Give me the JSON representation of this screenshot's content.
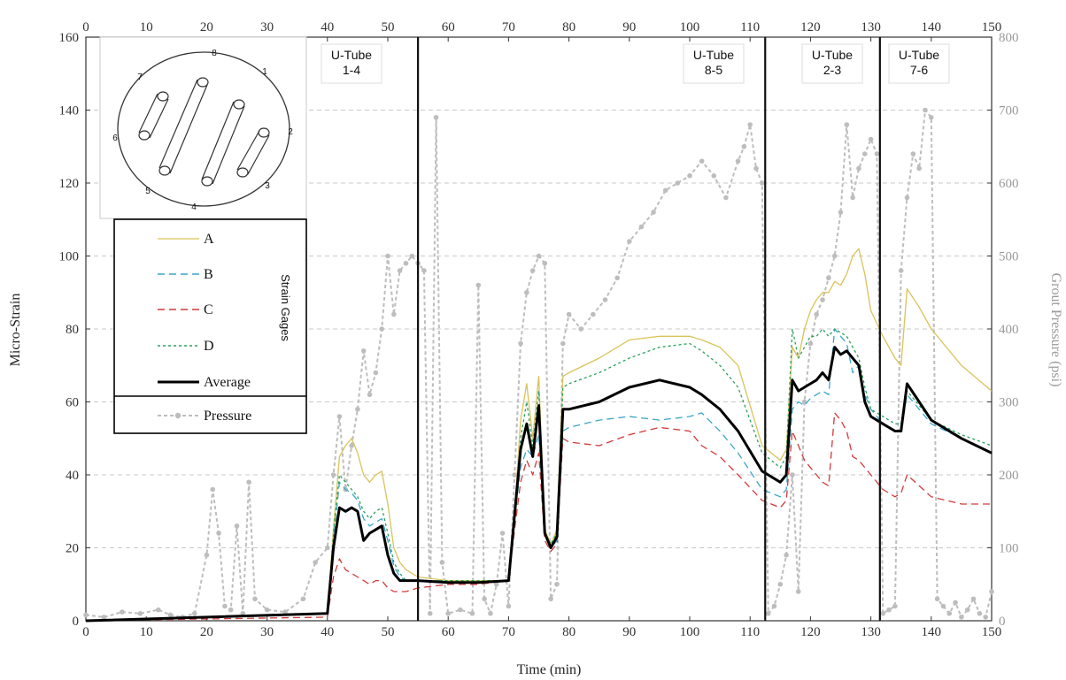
{
  "chart_data": {
    "type": "line",
    "xlabel": "Time (min)",
    "ylabel_left": "Micro-Strain",
    "ylabel_right": "Grout Pressure (psi)",
    "xlim": [
      0,
      150
    ],
    "ylim_left": [
      0,
      160
    ],
    "ylim_right": [
      0,
      800
    ],
    "x_ticks": [
      0,
      10,
      20,
      30,
      40,
      50,
      60,
      70,
      80,
      90,
      100,
      110,
      120,
      130,
      140,
      150
    ],
    "y_left_ticks": [
      0,
      20,
      40,
      60,
      80,
      100,
      120,
      140,
      160
    ],
    "y_right_ticks": [
      0,
      100,
      200,
      300,
      400,
      500,
      600,
      700,
      800
    ],
    "grid": "horizontal dashed",
    "legend_title": "Strain Gages",
    "legend_position": "top-left",
    "series": [
      {
        "name": "A",
        "color": "#d9c35a",
        "style": "solid",
        "axis": "left",
        "x": [
          0,
          40,
          41,
          42,
          43,
          44,
          45,
          46,
          47,
          48,
          49,
          50,
          51,
          52,
          53,
          55,
          60,
          65,
          70,
          71,
          72,
          73,
          74,
          75,
          76,
          77,
          78,
          79,
          80,
          85,
          90,
          95,
          100,
          102,
          105,
          108,
          112,
          115,
          116,
          117,
          118,
          119,
          120,
          121,
          122,
          123,
          124,
          125,
          126,
          127,
          128,
          129,
          130,
          132,
          134,
          135,
          136,
          138,
          140,
          145,
          150
        ],
        "y": [
          0,
          2,
          25,
          45,
          48,
          50,
          46,
          40,
          38,
          40,
          41,
          32,
          20,
          16,
          14,
          12,
          11,
          11,
          11,
          30,
          55,
          65,
          50,
          67,
          25,
          21,
          25,
          67,
          68,
          72,
          77,
          78,
          78,
          77,
          75,
          70,
          48,
          44,
          47,
          75,
          72,
          80,
          85,
          88,
          90,
          90,
          93,
          92,
          95,
          100,
          102,
          95,
          85,
          78,
          72,
          70,
          91,
          86,
          80,
          70,
          63
        ]
      },
      {
        "name": "B",
        "color": "#3aa6c8",
        "style": "dashed",
        "axis": "left",
        "x": [
          0,
          40,
          41,
          42,
          43,
          44,
          45,
          46,
          47,
          48,
          49,
          50,
          51,
          52,
          53,
          55,
          60,
          65,
          70,
          71,
          72,
          73,
          74,
          75,
          76,
          77,
          78,
          79,
          80,
          85,
          90,
          95,
          100,
          102,
          105,
          108,
          112,
          115,
          116,
          117,
          118,
          119,
          120,
          121,
          122,
          123,
          124,
          125,
          126,
          127,
          128,
          129,
          130,
          132,
          134,
          135,
          136,
          138,
          140,
          145,
          150
        ],
        "y": [
          0,
          2,
          22,
          38,
          36,
          35,
          33,
          28,
          26,
          27,
          28,
          22,
          15,
          12,
          11,
          11,
          11,
          11,
          11,
          28,
          42,
          47,
          45,
          51,
          24,
          20,
          22,
          52,
          53,
          55,
          56,
          55,
          56,
          57,
          52,
          46,
          36,
          34,
          36,
          58,
          60,
          59,
          61,
          62,
          63,
          62,
          80,
          78,
          76,
          68,
          70,
          62,
          58,
          54,
          52,
          52,
          62,
          58,
          54,
          50,
          46
        ]
      },
      {
        "name": "C",
        "color": "#d23a3a",
        "style": "dashed",
        "axis": "left",
        "x": [
          0,
          40,
          41,
          42,
          43,
          44,
          45,
          46,
          47,
          48,
          49,
          50,
          51,
          52,
          53,
          55,
          60,
          65,
          70,
          71,
          72,
          73,
          74,
          75,
          76,
          77,
          78,
          79,
          80,
          85,
          90,
          95,
          100,
          102,
          105,
          108,
          112,
          115,
          116,
          117,
          118,
          119,
          120,
          121,
          122,
          123,
          124,
          125,
          126,
          127,
          128,
          129,
          130,
          132,
          134,
          135,
          136,
          138,
          140,
          145,
          150
        ],
        "y": [
          0,
          1,
          12,
          17,
          14,
          13,
          12,
          11,
          10,
          11,
          11,
          9,
          8,
          8,
          8,
          9,
          10,
          10,
          11,
          25,
          38,
          44,
          40,
          46,
          22,
          19,
          21,
          50,
          49,
          48,
          51,
          53,
          52,
          48,
          45,
          40,
          33,
          31,
          33,
          52,
          48,
          44,
          42,
          40,
          38,
          37,
          57,
          55,
          52,
          45,
          44,
          42,
          40,
          36,
          34,
          35,
          40,
          37,
          34,
          32,
          32
        ]
      },
      {
        "name": "D",
        "color": "#2aa05a",
        "style": "dotted",
        "axis": "left",
        "x": [
          0,
          40,
          41,
          42,
          43,
          44,
          45,
          46,
          47,
          48,
          49,
          50,
          51,
          52,
          53,
          55,
          60,
          65,
          70,
          71,
          72,
          73,
          74,
          75,
          76,
          77,
          78,
          79,
          80,
          85,
          90,
          95,
          100,
          102,
          105,
          108,
          112,
          115,
          116,
          117,
          118,
          119,
          120,
          121,
          122,
          123,
          124,
          125,
          126,
          127,
          128,
          129,
          130,
          132,
          134,
          135,
          136,
          138,
          140,
          145,
          150
        ],
        "y": [
          0,
          2,
          24,
          40,
          38,
          36,
          34,
          30,
          28,
          30,
          31,
          24,
          16,
          13,
          11,
          11,
          11,
          11,
          11,
          30,
          50,
          60,
          48,
          63,
          24,
          21,
          24,
          64,
          65,
          68,
          72,
          75,
          76,
          74,
          70,
          64,
          46,
          42,
          45,
          80,
          72,
          75,
          78,
          78,
          80,
          78,
          80,
          79,
          78,
          75,
          72,
          64,
          58,
          56,
          54,
          54,
          63,
          59,
          55,
          51,
          48
        ]
      },
      {
        "name": "Average",
        "color": "#000000",
        "style": "solid-thick",
        "axis": "left",
        "x": [
          0,
          40,
          41,
          42,
          43,
          44,
          45,
          46,
          47,
          48,
          49,
          50,
          51,
          52,
          53,
          55,
          60,
          65,
          70,
          71,
          72,
          73,
          74,
          75,
          76,
          77,
          78,
          79,
          80,
          85,
          90,
          95,
          100,
          102,
          105,
          108,
          112,
          115,
          116,
          117,
          118,
          119,
          120,
          121,
          122,
          123,
          124,
          125,
          126,
          127,
          128,
          129,
          130,
          132,
          134,
          135,
          136,
          138,
          140,
          145,
          150
        ],
        "y": [
          0,
          2,
          20,
          31,
          30,
          31,
          30,
          22,
          24,
          25,
          26,
          18,
          13,
          11,
          11,
          11,
          10.5,
          10.5,
          11,
          29,
          47,
          54,
          45,
          59,
          24,
          20,
          23,
          58,
          58,
          60,
          64,
          66,
          64,
          62,
          58,
          52,
          41,
          38,
          40,
          66,
          63,
          64,
          65,
          66,
          68,
          66,
          75,
          73,
          74,
          72,
          70,
          60,
          56,
          54,
          52,
          52,
          65,
          60,
          55,
          50,
          46
        ]
      },
      {
        "name": "Pressure",
        "color": "#bdbdbd",
        "style": "dashed-markers",
        "axis": "right",
        "x": [
          0,
          3,
          6,
          9,
          12,
          14,
          16,
          18,
          20,
          21,
          22,
          23,
          24,
          25,
          26,
          27,
          28,
          30,
          33,
          36,
          38,
          40,
          41,
          42,
          43,
          44,
          45,
          46,
          47,
          48,
          49,
          50,
          51,
          52,
          53,
          54,
          55,
          56,
          57,
          58,
          59,
          60,
          62,
          64,
          65,
          66,
          67,
          68,
          69,
          70,
          71,
          72,
          73,
          74,
          75,
          76,
          77,
          78,
          79,
          80,
          82,
          84,
          86,
          88,
          90,
          92,
          94,
          96,
          98,
          100,
          102,
          104,
          106,
          108,
          109,
          110,
          111,
          112,
          113,
          114,
          115,
          116,
          117,
          118,
          119,
          120,
          121,
          122,
          123,
          124,
          125,
          126,
          127,
          128,
          129,
          130,
          131,
          132,
          133,
          134,
          135,
          136,
          137,
          138,
          139,
          140,
          141,
          142,
          143,
          144,
          145,
          146,
          147,
          148,
          149,
          150
        ],
        "y": [
          8,
          5,
          12,
          10,
          15,
          8,
          5,
          10,
          90,
          180,
          120,
          20,
          15,
          130,
          10,
          190,
          30,
          15,
          12,
          30,
          80,
          100,
          200,
          280,
          180,
          240,
          290,
          370,
          310,
          340,
          400,
          500,
          420,
          480,
          490,
          500,
          490,
          480,
          10,
          690,
          80,
          10,
          15,
          10,
          460,
          30,
          10,
          50,
          120,
          20,
          200,
          380,
          450,
          480,
          500,
          490,
          30,
          50,
          380,
          420,
          400,
          420,
          440,
          470,
          520,
          540,
          560,
          590,
          600,
          610,
          630,
          610,
          580,
          630,
          650,
          680,
          620,
          600,
          10,
          20,
          50,
          90,
          200,
          40,
          300,
          380,
          420,
          440,
          470,
          500,
          560,
          680,
          580,
          620,
          640,
          660,
          640,
          10,
          15,
          20,
          480,
          580,
          640,
          620,
          700,
          690,
          30,
          20,
          10,
          25,
          5,
          15,
          30,
          10,
          5,
          40
        ]
      }
    ],
    "annotations": [
      {
        "text": "U-Tube\n1-4",
        "x_line": 55
      },
      {
        "text": "U-Tube\n8-5",
        "x_line": 112.5
      },
      {
        "text": "U-Tube\n2-3",
        "x_line": 131.5
      },
      {
        "text": "U-Tube\n7-6",
        "x_line": null
      }
    ],
    "inset_labels": [
      "1",
      "2",
      "3",
      "4",
      "5",
      "6",
      "7",
      "8"
    ]
  }
}
